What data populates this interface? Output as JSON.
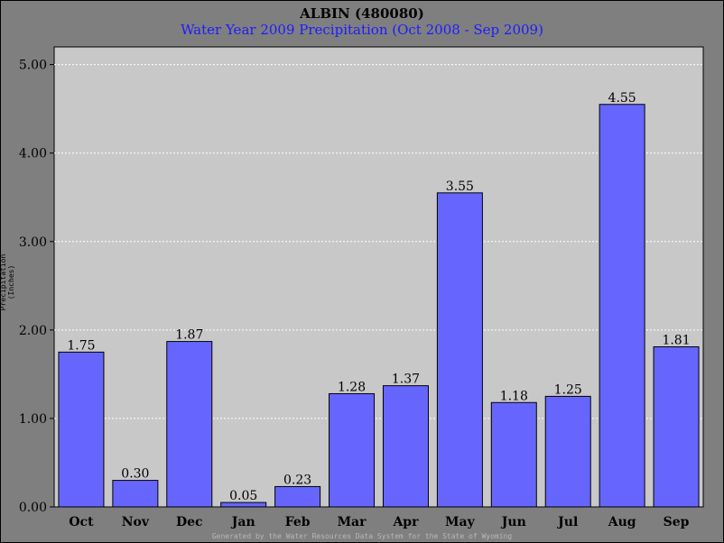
{
  "chart_data": {
    "type": "bar",
    "title": "ALBIN (480080)",
    "subtitle": "Water Year 2009 Precipitation (Oct 2008 - Sep 2009)",
    "ylabel": "Precipitation (Inches)",
    "xlabel": "",
    "footer": "Generated by the Water Resources Data System for the State of Wyoming",
    "categories": [
      "Oct",
      "Nov",
      "Dec",
      "Jan",
      "Feb",
      "Mar",
      "Apr",
      "May",
      "Jun",
      "Jul",
      "Aug",
      "Sep"
    ],
    "values": [
      1.75,
      0.3,
      1.87,
      0.05,
      0.23,
      1.28,
      1.37,
      3.55,
      1.18,
      1.25,
      4.55,
      1.81
    ],
    "value_labels": [
      "1.75",
      "0.30",
      "1.87",
      "0.05",
      "0.23",
      "1.28",
      "1.37",
      "3.55",
      "1.18",
      "1.25",
      "4.55",
      "1.81"
    ],
    "yticks": [
      "0.00",
      "1.00",
      "2.00",
      "3.00",
      "4.00",
      "5.00"
    ],
    "ylim": [
      0,
      5.2
    ],
    "grid": true,
    "legend": "none",
    "colors": {
      "bar": "#6666ff",
      "plot_bg": "#c8c8c8",
      "frame_bg": "#7f7f7f",
      "subtitle": "#1c1cff",
      "grid": "#ffffff"
    }
  }
}
